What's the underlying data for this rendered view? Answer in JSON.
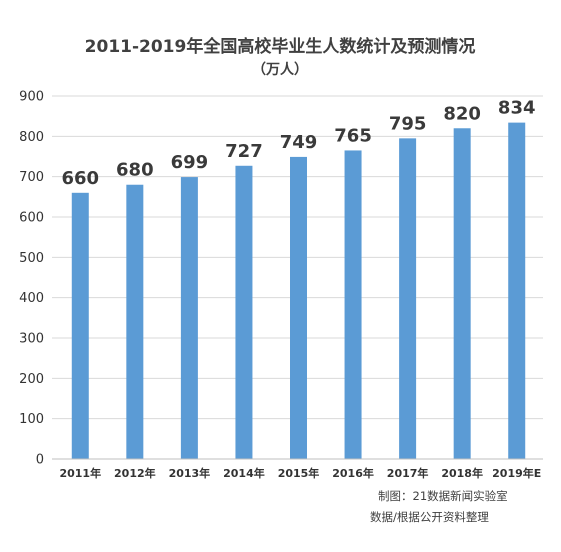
{
  "chart_data": {
    "type": "bar",
    "title": "2011-2019年全国高校毕业生人数统计及预测情况",
    "subtitle": "（万人）",
    "categories": [
      "2011年",
      "2012年",
      "2013年",
      "2014年",
      "2015年",
      "2016年",
      "2017年",
      "2018年",
      "2019年E"
    ],
    "values": [
      660,
      680,
      699,
      727,
      749,
      765,
      795,
      820,
      834
    ],
    "value_labels": [
      "660",
      "680",
      "699",
      "727",
      "749",
      "765",
      "795",
      "820",
      "834"
    ],
    "ylim": [
      0,
      900
    ],
    "yticks": [
      "0",
      "100",
      "200",
      "300",
      "400",
      "500",
      "600",
      "700",
      "800",
      "900"
    ],
    "grid": true,
    "bar_color": "#5b9bd5",
    "notes": [
      "制图：21数据新闻实验室",
      "数据/根据公开资料整理"
    ]
  }
}
